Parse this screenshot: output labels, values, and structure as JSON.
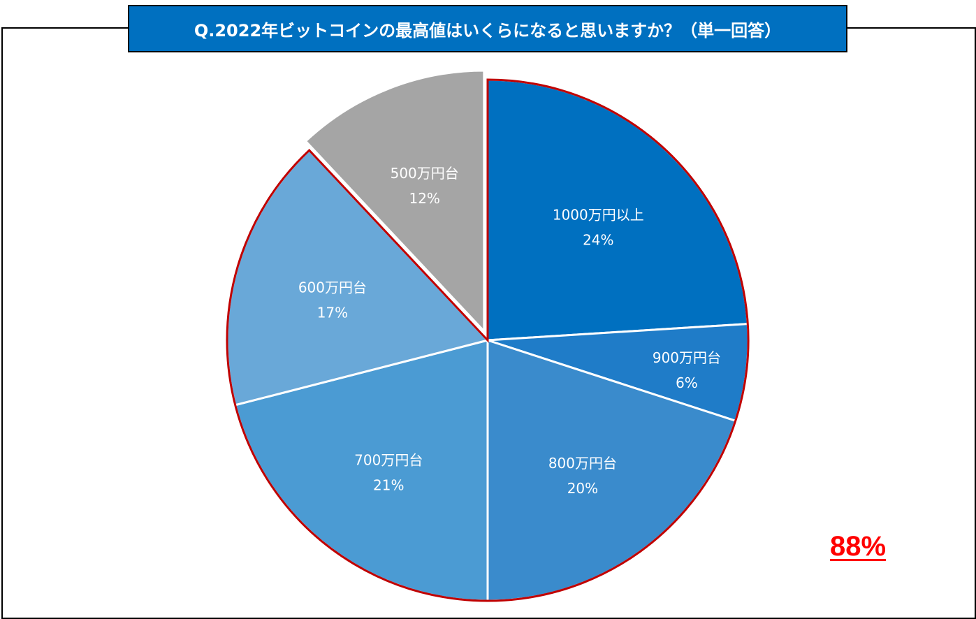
{
  "chart_data": {
    "type": "pie",
    "title": "Q.2022年ビットコインの最高値はいくらになると思いますか？（単一回答）",
    "start_angle_deg": 0,
    "direction": "clockwise",
    "slices": [
      {
        "label": "1000万円以上",
        "value": 24,
        "value_label": "24%",
        "color": "#0070c0",
        "highlighted": true
      },
      {
        "label": "900万円台",
        "value": 6,
        "value_label": "6%",
        "color": "#1f7cc8",
        "highlighted": true
      },
      {
        "label": "800万円台",
        "value": 20,
        "value_label": "20%",
        "color": "#3a8bcc",
        "highlighted": true
      },
      {
        "label": "700万円台",
        "value": 21,
        "value_label": "21%",
        "color": "#4b9bd3",
        "highlighted": true
      },
      {
        "label": "600万円台",
        "value": 17,
        "value_label": "17%",
        "color": "#69a8d8",
        "highlighted": true
      },
      {
        "label": "500万円台",
        "value": 12,
        "value_label": "12%",
        "color": "#a5a5a5",
        "highlighted": false,
        "exploded": true
      }
    ],
    "highlight_color": "#c00000",
    "highlight_total_label": "88%",
    "highlight_total_color": "#ff0000"
  }
}
